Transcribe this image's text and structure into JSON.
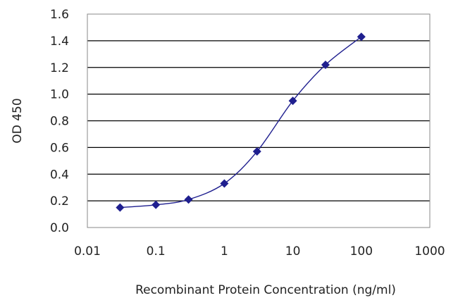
{
  "chart_data": {
    "type": "scatter",
    "title": "",
    "xlabel": "Recombinant Protein Concentration (ng/ml)",
    "ylabel": "OD 450",
    "x_scale": "log",
    "xlim": [
      0.01,
      1000
    ],
    "ylim": [
      0.0,
      1.6
    ],
    "x_ticks": [
      0.01,
      0.1,
      1,
      10,
      100,
      1000
    ],
    "x_tick_labels": [
      "0.01",
      "0.1",
      "1",
      "10",
      "100",
      "1000"
    ],
    "y_ticks": [
      0.0,
      0.2,
      0.4,
      0.6,
      0.8,
      1.0,
      1.2,
      1.4,
      1.6
    ],
    "y_tick_labels": [
      "0.0",
      "0.2",
      "0.4",
      "0.6",
      "0.8",
      "1.0",
      "1.2",
      "1.4",
      "1.6"
    ],
    "grid": "horizontal",
    "legend": "none",
    "series": [
      {
        "x": [
          0.03,
          0.1,
          0.3,
          1,
          3,
          10,
          30,
          100
        ],
        "y": [
          0.15,
          0.17,
          0.21,
          0.33,
          0.57,
          0.95,
          1.22,
          1.43
        ],
        "marker": "diamond",
        "line": "smooth",
        "color": "#1f1f8f"
      }
    ],
    "colors": {
      "series": "#1f1f8f",
      "grid": "#000000",
      "frame": "#8a8a8a"
    }
  }
}
